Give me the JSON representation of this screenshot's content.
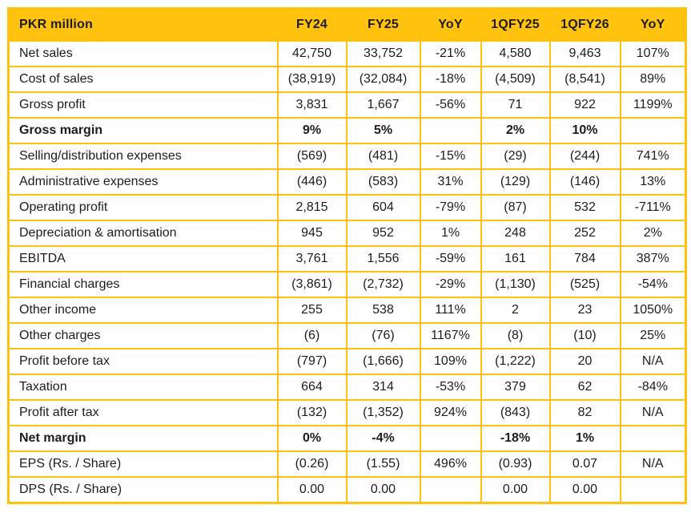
{
  "styles": {
    "accent_yellow": "#FFC20E",
    "text_color": "#1D1D1B",
    "background": "#FFFFFF"
  },
  "chart_data": {
    "type": "table",
    "title": "PKR million",
    "columns": [
      "FY24",
      "FY25",
      "YoY",
      "1QFY25",
      "1QFY26",
      "YoY"
    ],
    "rows": [
      {
        "label": "Net sales",
        "bold": false,
        "values": [
          "42,750",
          "33,752",
          "-21%",
          "4,580",
          "9,463",
          "107%"
        ]
      },
      {
        "label": "Cost of sales",
        "bold": false,
        "values": [
          "(38,919)",
          "(32,084)",
          "-18%",
          "(4,509)",
          "(8,541)",
          "89%"
        ]
      },
      {
        "label": "Gross profit",
        "bold": false,
        "values": [
          "3,831",
          "1,667",
          "-56%",
          "71",
          "922",
          "1199%"
        ]
      },
      {
        "label": "Gross margin",
        "bold": true,
        "values": [
          "9%",
          "5%",
          "",
          "2%",
          "10%",
          ""
        ]
      },
      {
        "label": "Selling/distribution expenses",
        "bold": false,
        "values": [
          "(569)",
          "(481)",
          "-15%",
          "(29)",
          "(244)",
          "741%"
        ]
      },
      {
        "label": "Administrative expenses",
        "bold": false,
        "values": [
          "(446)",
          "(583)",
          "31%",
          "(129)",
          "(146)",
          "13%"
        ]
      },
      {
        "label": "Operating profit",
        "bold": false,
        "values": [
          "2,815",
          "604",
          "-79%",
          "(87)",
          "532",
          "-711%"
        ]
      },
      {
        "label": "Depreciation & amortisation",
        "bold": false,
        "values": [
          "945",
          "952",
          "1%",
          "248",
          "252",
          "2%"
        ]
      },
      {
        "label": "EBITDA",
        "bold": false,
        "values": [
          "3,761",
          "1,556",
          "-59%",
          "161",
          "784",
          "387%"
        ]
      },
      {
        "label": "Financial charges",
        "bold": false,
        "values": [
          "(3,861)",
          "(2,732)",
          "-29%",
          "(1,130)",
          "(525)",
          "-54%"
        ]
      },
      {
        "label": "Other income",
        "bold": false,
        "values": [
          "255",
          "538",
          "111%",
          "2",
          "23",
          "1050%"
        ]
      },
      {
        "label": "Other charges",
        "bold": false,
        "values": [
          "(6)",
          "(76)",
          "1167%",
          "(8)",
          "(10)",
          "25%"
        ]
      },
      {
        "label": "Profit before tax",
        "bold": false,
        "values": [
          "(797)",
          "(1,666)",
          "109%",
          "(1,222)",
          "20",
          "N/A"
        ]
      },
      {
        "label": "Taxation",
        "bold": false,
        "values": [
          "664",
          "314",
          "-53%",
          "379",
          "62",
          "-84%"
        ]
      },
      {
        "label": "Profit after tax",
        "bold": false,
        "values": [
          "(132)",
          "(1,352)",
          "924%",
          "(843)",
          "82",
          "N/A"
        ]
      },
      {
        "label": "Net margin",
        "bold": true,
        "values": [
          "0%",
          "-4%",
          "",
          "-18%",
          "1%",
          ""
        ]
      },
      {
        "label": "EPS (Rs. / Share)",
        "bold": false,
        "values": [
          "(0.26)",
          "(1.55)",
          "496%",
          "(0.93)",
          "0.07",
          "N/A"
        ]
      },
      {
        "label": "DPS (Rs. / Share)",
        "bold": false,
        "values": [
          "0.00",
          "0.00",
          "",
          "0.00",
          "0.00",
          ""
        ]
      }
    ]
  }
}
